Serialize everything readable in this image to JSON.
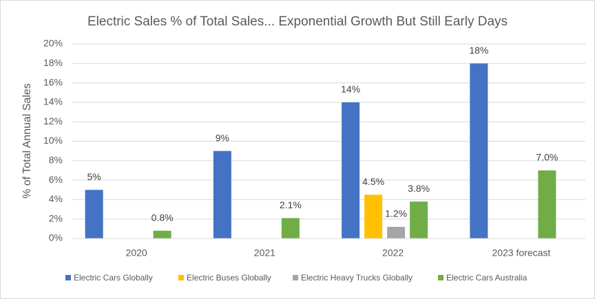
{
  "chart_data": {
    "type": "bar",
    "title": "Electric Sales % of Total Sales... Exponential Growth But Still Early Days",
    "y_label": "% of Total Annual Sales",
    "categories": [
      "2020",
      "2021",
      "2022",
      "2023 forecast"
    ],
    "series": [
      {
        "name": "Electric Cars Globally",
        "color": "#4472c4",
        "values": [
          5,
          9,
          14,
          18
        ],
        "value_labels": [
          "5%",
          "9%",
          "14%",
          "18%"
        ]
      },
      {
        "name": "Electric Buses Globally",
        "color": "#ffc000",
        "values": [
          null,
          null,
          4.5,
          null
        ],
        "value_labels": [
          null,
          null,
          "4.5%",
          null
        ]
      },
      {
        "name": "Electric Heavy Trucks Globally",
        "color": "#a5a5a5",
        "values": [
          null,
          null,
          1.2,
          null
        ],
        "value_labels": [
          null,
          null,
          "1.2%",
          null
        ]
      },
      {
        "name": "Electric Cars Australia",
        "color": "#70ad47",
        "values": [
          0.8,
          2.1,
          3.8,
          7.0
        ],
        "value_labels": [
          "0.8%",
          "2.1%",
          "3.8%",
          "7.0%"
        ]
      }
    ],
    "ylim": [
      0,
      20
    ],
    "yticks": [
      {
        "value": 0,
        "label": "0%"
      },
      {
        "value": 2,
        "label": "2%"
      },
      {
        "value": 4,
        "label": "4%"
      },
      {
        "value": 6,
        "label": "6%"
      },
      {
        "value": 8,
        "label": "8%"
      },
      {
        "value": 10,
        "label": "10%"
      },
      {
        "value": 12,
        "label": "12%"
      },
      {
        "value": 14,
        "label": "14%"
      },
      {
        "value": 16,
        "label": "16%"
      },
      {
        "value": 18,
        "label": "18%"
      },
      {
        "value": 20,
        "label": "20%"
      }
    ],
    "grid": true,
    "legend": "bottom"
  }
}
